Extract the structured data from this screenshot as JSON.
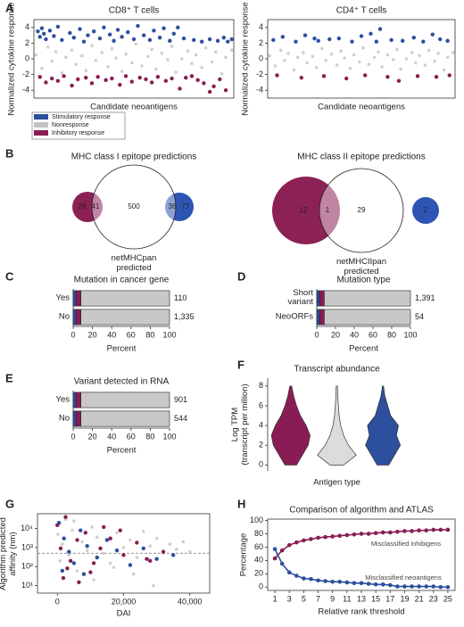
{
  "chart_data": [
    {
      "type": "scatter",
      "panel": "A",
      "title": "CD8⁺ T cells",
      "xlabel": "Candidate neoantigens",
      "ylabel": "Normalized cytokine response",
      "xlim": [
        0,
        100
      ],
      "ylim": [
        -5,
        5
      ],
      "yticks": [
        -4,
        -2,
        0,
        2,
        4
      ],
      "legend": "bottom-left",
      "series": [
        {
          "name": "Stimulatory response",
          "color": "#2c4f9e",
          "x": [
            2,
            3,
            4,
            5,
            6,
            8,
            10,
            12,
            14,
            18,
            20,
            23,
            25,
            27,
            30,
            33,
            35,
            38,
            40,
            42,
            44,
            47,
            50,
            52,
            55,
            58,
            60,
            63,
            65,
            68,
            70,
            72,
            75,
            80,
            84,
            88,
            92,
            95,
            97,
            99
          ],
          "values": [
            3.5,
            2.8,
            3.9,
            3.2,
            2.5,
            3.6,
            2.9,
            4.1,
            2.4,
            3.3,
            2.7,
            3.8,
            2.2,
            3.0,
            3.5,
            2.6,
            4.0,
            3.1,
            2.3,
            3.7,
            2.8,
            3.4,
            2.5,
            4.2,
            3.0,
            2.4,
            3.6,
            2.7,
            3.9,
            2.3,
            3.2,
            4.0,
            2.6,
            2.4,
            2.2,
            2.5,
            2.3,
            2.7,
            2.2,
            2.5
          ]
        },
        {
          "name": "Nonresponse",
          "color": "#c4c4c4",
          "x": [
            1,
            4,
            7,
            9,
            11,
            14,
            16,
            19,
            21,
            24,
            26,
            29,
            31,
            34,
            37,
            39,
            41,
            44,
            46,
            49,
            51,
            54,
            57,
            59,
            61,
            64,
            67,
            69,
            71,
            74,
            77,
            79,
            81,
            84,
            86,
            89,
            91,
            94,
            96,
            99
          ],
          "values": [
            0.5,
            -1.2,
            1.5,
            -0.3,
            0.9,
            -1.8,
            0.2,
            1.1,
            -0.7,
            0.4,
            -1.5,
            1.7,
            -0.2,
            0.8,
            -1.0,
            1.3,
            0.1,
            -1.6,
            0.6,
            -0.5,
            1.9,
            -0.9,
            0.3,
            1.2,
            -1.3,
            0.7,
            -0.1,
            1.6,
            -1.7,
            0.0,
            1.0,
            -0.6,
            0.5,
            -1.1,
            1.4,
            -0.4,
            0.9,
            -1.9,
            0.2,
            1.1
          ]
        },
        {
          "name": "Inhibitory response",
          "color": "#8a1c55",
          "x": [
            3,
            6,
            9,
            12,
            15,
            19,
            22,
            26,
            29,
            32,
            36,
            39,
            43,
            46,
            49,
            53,
            56,
            59,
            62,
            66,
            69,
            73,
            76,
            79,
            82,
            85,
            88,
            90,
            93,
            96
          ],
          "values": [
            -2.3,
            -3.0,
            -2.5,
            -2.8,
            -2.2,
            -3.4,
            -2.6,
            -2.4,
            -3.1,
            -2.3,
            -2.7,
            -2.5,
            -3.3,
            -2.2,
            -2.9,
            -2.4,
            -2.6,
            -3.0,
            -2.3,
            -2.8,
            -2.5,
            -3.8,
            -2.4,
            -2.2,
            -2.7,
            -3.1,
            -4.2,
            -3.5,
            -2.6,
            -4.0
          ]
        }
      ]
    },
    {
      "type": "scatter",
      "title": "CD4⁺ T cells",
      "xlabel": "Candidate neoantigens",
      "ylabel": "Normalized cytokine response",
      "xlim": [
        0,
        100
      ],
      "ylim": [
        -5,
        5
      ],
      "yticks": [
        -4,
        -2,
        0,
        2,
        4
      ],
      "series": [
        {
          "name": "Stimulatory response",
          "color": "#2c4f9e",
          "x": [
            3,
            8,
            15,
            20,
            27,
            33,
            38,
            45,
            50,
            55,
            60,
            66,
            72,
            78,
            83,
            88,
            92,
            96,
            58,
            25
          ],
          "values": [
            2.4,
            2.8,
            2.2,
            3.0,
            2.3,
            2.5,
            2.6,
            2.2,
            2.9,
            3.2,
            3.8,
            2.4,
            2.3,
            2.7,
            2.2,
            3.1,
            2.5,
            2.3,
            2.2,
            2.6
          ]
        },
        {
          "name": "Nonresponse",
          "color": "#c4c4c4",
          "x": [
            1,
            4,
            7,
            9,
            11,
            14,
            16,
            19,
            21,
            24,
            26,
            29,
            31,
            34,
            37,
            39,
            41,
            44,
            46,
            49,
            51,
            54,
            57,
            59,
            61,
            64,
            67,
            69,
            71,
            74,
            77,
            79,
            81,
            84,
            86,
            89,
            91,
            94,
            96,
            99
          ],
          "values": [
            0.4,
            -0.9,
            1.1,
            -0.2,
            0.7,
            -1.4,
            0.2,
            0.8,
            -0.5,
            0.3,
            -1.1,
            1.3,
            -0.2,
            0.6,
            -0.8,
            1.0,
            0.1,
            -1.2,
            0.5,
            -0.4,
            1.4,
            -0.7,
            0.2,
            0.9,
            -1.0,
            0.5,
            -0.1,
            1.2,
            -1.3,
            0.0,
            0.8,
            -0.5,
            0.4,
            -0.8,
            1.1,
            -0.3,
            0.7,
            -1.4,
            0.2,
            0.8
          ]
        },
        {
          "name": "Inhibitory response",
          "color": "#8a1c55",
          "x": [
            5,
            18,
            30,
            42,
            52,
            64,
            70,
            80,
            90,
            97
          ],
          "values": [
            -2.1,
            -2.4,
            -2.2,
            -2.5,
            -2.1,
            -2.3,
            -2.8,
            -2.2,
            -2.3,
            -2.1
          ]
        }
      ]
    },
    {
      "type": "venn",
      "panel": "B",
      "title": "MHC class I epitope predictions",
      "values": [
        28,
        41,
        500,
        36,
        77
      ],
      "colors": [
        "#8c2156",
        "#2e55b4"
      ],
      "set_label": "netMHCpan\npredicted"
    },
    {
      "type": "venn",
      "title": "MHC class II epitope predictions",
      "values": [
        12,
        1,
        29,
        2
      ],
      "colors": [
        "#8c2156",
        "#2e55b4"
      ],
      "set_label": "netMHCIIpan\npredicted"
    },
    {
      "type": "hbar",
      "panel": "C",
      "title": "Mutation in cancer gene",
      "xlabel": "Percent",
      "categories": [
        "Yes",
        "No"
      ],
      "xlim": [
        0,
        100
      ],
      "xticks": [
        0,
        20,
        40,
        60,
        80,
        100
      ],
      "series": [
        {
          "color": "#2c4f9e",
          "values": [
            3,
            3
          ]
        },
        {
          "color": "#8a1c55",
          "values": [
            5,
            5
          ]
        },
        {
          "color": "#c8c8c8",
          "values": [
            92,
            92
          ]
        }
      ],
      "totals": {
        "values": [
          110,
          1335
        ],
        "value_labels": [
          "110",
          "1,335"
        ]
      }
    },
    {
      "type": "hbar",
      "panel": "D",
      "title": "Mutation type",
      "xlabel": "Percent",
      "categories": [
        "Short\nvariant",
        "NeoORFs"
      ],
      "xlim": [
        0,
        100
      ],
      "xticks": [
        0,
        20,
        40,
        60,
        80,
        100
      ],
      "series": [
        {
          "color": "#2c4f9e",
          "values": [
            3,
            3
          ]
        },
        {
          "color": "#8a1c55",
          "values": [
            5,
            5
          ]
        },
        {
          "color": "#c8c8c8",
          "values": [
            92,
            92
          ]
        }
      ],
      "totals": {
        "values": [
          1391,
          54
        ],
        "value_labels": [
          "1,391",
          "54"
        ]
      }
    },
    {
      "type": "hbar",
      "panel": "E",
      "title": "Variant detected in RNA",
      "xlabel": "Percent",
      "categories": [
        "Yes",
        "No"
      ],
      "xlim": [
        0,
        100
      ],
      "xticks": [
        0,
        20,
        40,
        60,
        80,
        100
      ],
      "series": [
        {
          "color": "#2c4f9e",
          "values": [
            3,
            3
          ]
        },
        {
          "color": "#8a1c55",
          "values": [
            5,
            5
          ]
        },
        {
          "color": "#c8c8c8",
          "values": [
            92,
            92
          ]
        }
      ],
      "totals": {
        "values": [
          901,
          544
        ],
        "value_labels": [
          "901",
          "544"
        ]
      }
    },
    {
      "type": "violin",
      "panel": "F",
      "title": "Transcript abundance",
      "xlabel": "Antigen type",
      "ylabel": "Log TPM\n(transcript per million)",
      "ylim": [
        -0.6,
        8.8
      ],
      "yticks": [
        0,
        2,
        4,
        6,
        8
      ],
      "density_at": [
        0,
        1,
        2,
        3,
        4,
        5,
        6,
        7,
        8
      ],
      "series": [
        {
          "color": "#8a1c55",
          "density": [
            0.3,
            0.6,
            0.9,
            1.0,
            0.8,
            0.5,
            0.3,
            0.15,
            0.05
          ]
        },
        {
          "color": "#dcdcdc",
          "density": [
            0.35,
            1.0,
            0.6,
            0.35,
            0.2,
            0.12,
            0.08,
            0.05,
            0.03
          ]
        },
        {
          "color": "#2c4f9e",
          "density": [
            0.3,
            0.6,
            0.9,
            0.7,
            0.8,
            0.4,
            0.25,
            0.1,
            0.03
          ]
        }
      ]
    },
    {
      "type": "scatter",
      "panel": "G",
      "xlabel": "DAI",
      "ylabel": "Algorithm predicted\naffinity (nm)",
      "log_y": true,
      "xlim": [
        -6000,
        46000
      ],
      "ylim": [
        4,
        60000
      ],
      "xticks": [
        0,
        {
          "value": 20000,
          "label": "20,000"
        },
        {
          "value": 40000,
          "label": "40,000"
        }
      ],
      "yticks": [
        {
          "value": 10,
          "label": "10¹"
        },
        {
          "value": 100,
          "label": "10²"
        },
        {
          "value": 1000,
          "label": "10³"
        },
        {
          "value": 10000,
          "label": "10⁴"
        }
      ],
      "hline": 500,
      "series": [
        {
          "color": "#2c4f9e",
          "x": [
            500,
            2000,
            3500,
            5000,
            7000,
            9000,
            12000,
            15000,
            18000,
            22000,
            26000,
            30000,
            35000,
            1500,
            8000
          ],
          "values": [
            20000,
            3000,
            600,
            150,
            8000,
            1200,
            300,
            2500,
            700,
            120,
            900,
            250,
            400,
            60,
            40
          ]
        },
        {
          "color": "#c4c4c4",
          "x": [
            200,
            800,
            1500,
            2500,
            3500,
            4500,
            6000,
            7500,
            9000,
            10500,
            12000,
            14000,
            16000,
            18000,
            20000,
            22000,
            24000,
            26000,
            28000,
            30000,
            32000,
            34000,
            36000,
            38000,
            40000,
            5000,
            11000,
            17000,
            23000,
            29000
          ],
          "values": [
            5000,
            200,
            1500,
            30000,
            400,
            8000,
            60,
            2000,
            700,
            12000,
            3500,
            500,
            150,
            6000,
            1000,
            2500,
            300,
            7000,
            1200,
            3000,
            500,
            1500,
            800,
            2000,
            600,
            25000,
            20,
            90,
            40,
            10
          ]
        },
        {
          "color": "#8a1c55",
          "x": [
            0,
            1000,
            2500,
            4000,
            6000,
            8500,
            11000,
            13000,
            16000,
            20000,
            24000,
            28000,
            32000,
            3000,
            6500,
            10000,
            1800,
            14000,
            19000,
            27000
          ],
          "values": [
            15000,
            900,
            40000,
            200,
            2500,
            6000,
            150,
            900,
            3000,
            400,
            1800,
            200,
            600,
            80,
            15,
            50,
            25,
            12000,
            8000,
            250
          ]
        }
      ]
    },
    {
      "type": "line",
      "panel": "H",
      "title": "Comparison of algorithm and ATLAS",
      "xlabel": "Relative rank threshold",
      "ylabel": "Percentage",
      "xlim": [
        0,
        26
      ],
      "ylim": [
        -5,
        102
      ],
      "xticks": [
        1,
        3,
        5,
        7,
        9,
        11,
        13,
        15,
        17,
        19,
        21,
        23,
        25
      ],
      "yticks": [
        0,
        20,
        40,
        60,
        80,
        100
      ],
      "x": [
        1,
        2,
        3,
        4,
        5,
        6,
        7,
        8,
        9,
        10,
        11,
        12,
        13,
        14,
        15,
        16,
        17,
        18,
        19,
        20,
        21,
        22,
        23,
        24,
        25
      ],
      "series": [
        {
          "name": "Misclassified inhibigens",
          "color": "#8a1c55",
          "values": [
            43,
            55,
            63,
            67,
            70,
            72,
            74,
            75,
            76,
            77,
            78,
            79,
            80,
            80,
            81,
            82,
            82,
            83,
            84,
            84,
            85,
            85,
            86,
            86,
            86
          ]
        },
        {
          "name": "Misclassified neoantigens",
          "color": "#2c4f9e",
          "values": [
            57,
            35,
            22,
            17,
            13,
            12,
            10,
            9,
            8,
            8,
            7,
            6,
            6,
            5,
            4,
            4,
            3,
            1,
            1,
            1,
            1,
            1,
            1,
            0,
            0
          ]
        }
      ]
    }
  ]
}
